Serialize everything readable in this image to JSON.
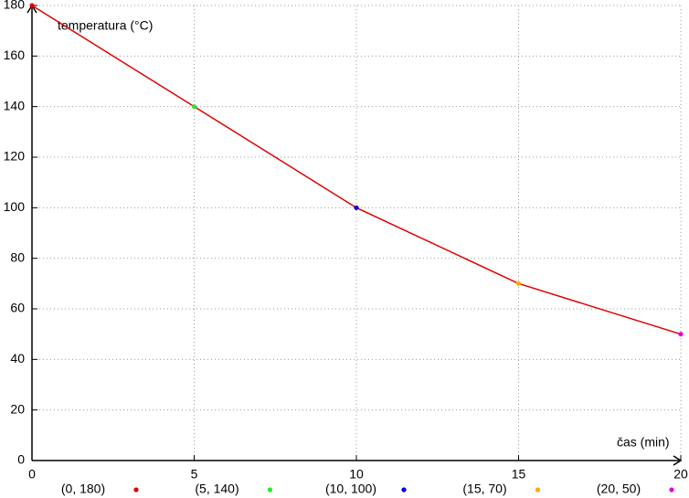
{
  "chart_data": {
    "type": "line",
    "x_label": "čas (min)",
    "y_label": "temperatura (°C)",
    "x": [
      0,
      5,
      10,
      15,
      20
    ],
    "values": [
      180,
      140,
      100,
      70,
      50
    ],
    "color": "#e00000",
    "point_labels": [
      "(0, 180)",
      "(5, 140)",
      "(10, 100)",
      "(15, 70)",
      "(20, 50)"
    ],
    "point_colors": [
      "#e00000",
      "#22ee22",
      "#0000e0",
      "#ffaa00",
      "#e000e0"
    ],
    "xlim": [
      0,
      20
    ],
    "ylim": [
      0,
      180
    ],
    "xticks": [
      0,
      5,
      10,
      15,
      20
    ],
    "yticks": [
      0,
      20,
      40,
      60,
      80,
      100,
      120,
      140,
      160,
      180
    ],
    "grid": true
  }
}
